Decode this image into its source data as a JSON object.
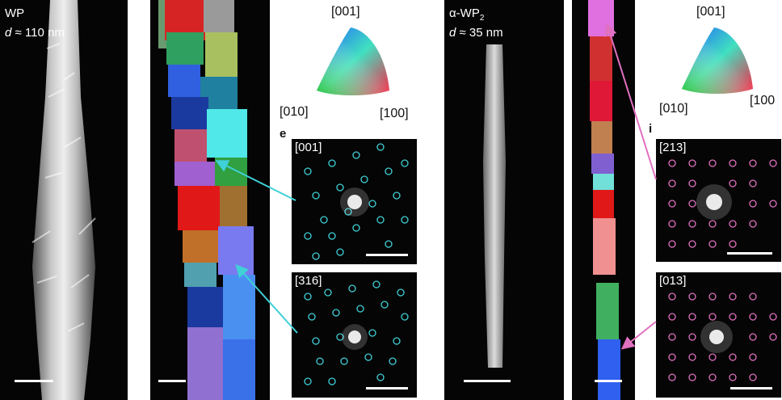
{
  "panel_a": {
    "label": "WP",
    "d_symbol": "d",
    "d_value": "≈ 110 nm"
  },
  "panel_b": {},
  "panel_c": {
    "label_prefix": "α-WP",
    "label_sub": "2",
    "d_symbol": "d",
    "d_value": "≈ 35 nm"
  },
  "legend_left": {
    "top": "[001]",
    "left": "[010]",
    "right": "[100]"
  },
  "legend_right": {
    "top": "[001]",
    "left": "[010]",
    "right": "[100"
  },
  "section_labels": {
    "e": "e",
    "i": "i"
  },
  "diffraction": {
    "left_top": "[001]",
    "left_bottom": "[316]",
    "right_top": "[213]",
    "right_bottom": "[013]"
  },
  "colors": {
    "cyan_marker": "#40d0d8",
    "pink_marker": "#e070c0"
  }
}
